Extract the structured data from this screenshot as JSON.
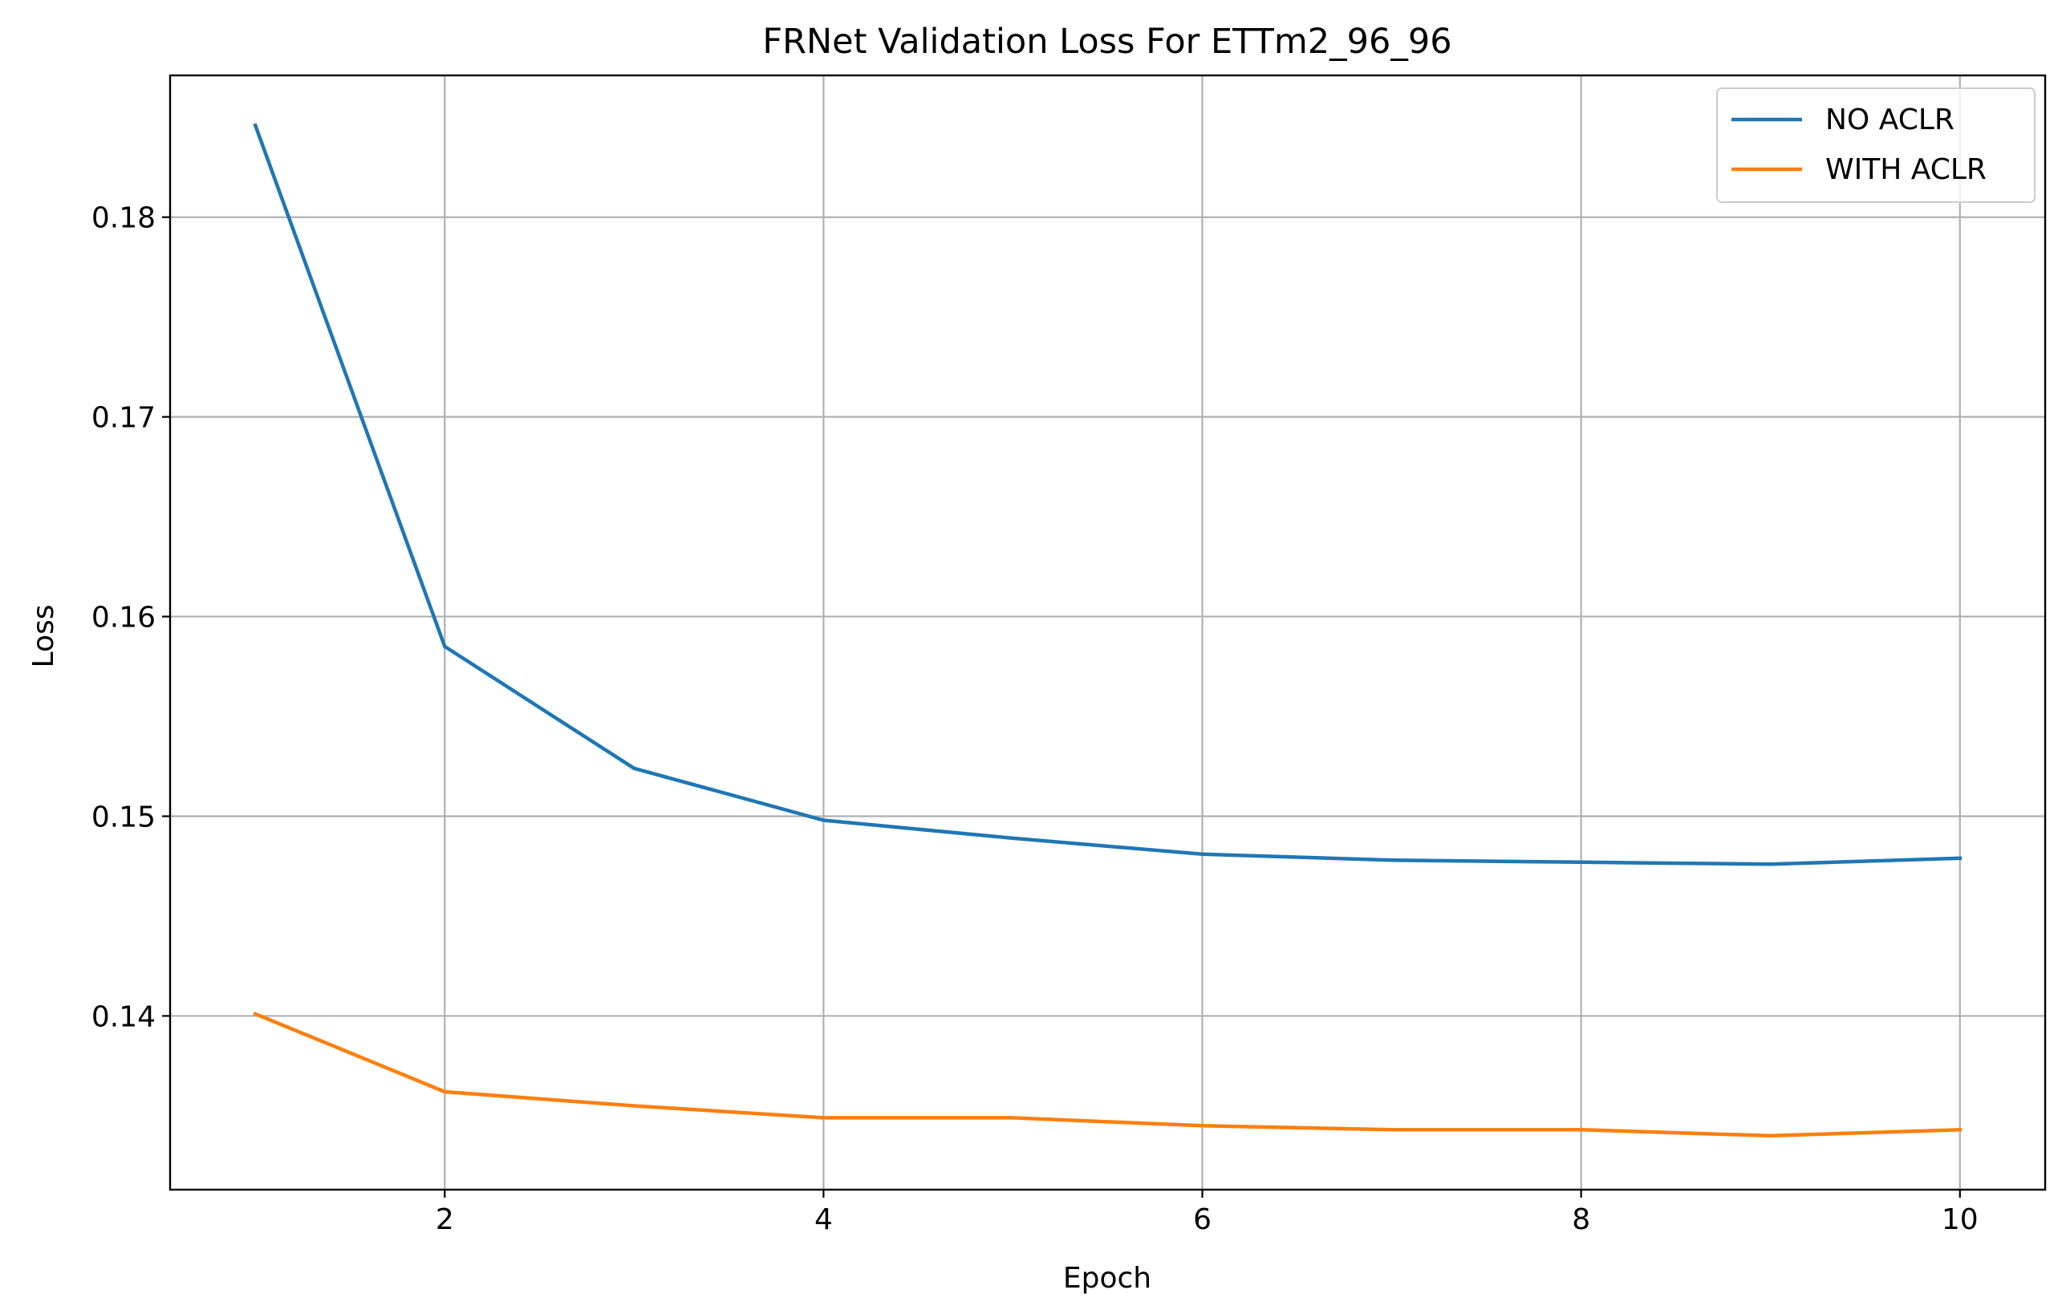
{
  "chart_data": {
    "type": "line",
    "title": "FRNet Validation Loss For ETTm2_96_96",
    "xlabel": "Epoch",
    "ylabel": "Loss",
    "x": [
      1,
      2,
      3,
      4,
      5,
      6,
      7,
      8,
      9,
      10
    ],
    "xlim": [
      0.55,
      10.45
    ],
    "ylim": [
      0.1313,
      0.1871
    ],
    "xticks": [
      2,
      4,
      6,
      8,
      10
    ],
    "yticks": [
      0.14,
      0.15,
      0.16,
      0.17,
      0.18
    ],
    "xtick_labels": [
      "2",
      "4",
      "6",
      "8",
      "10"
    ],
    "ytick_labels": [
      "0.14",
      "0.15",
      "0.16",
      "0.17",
      "0.18"
    ],
    "grid": true,
    "legend_position": "top-right",
    "series": [
      {
        "name": "NO ACLR",
        "color": "#1f77b4",
        "values": [
          0.1846,
          0.1585,
          0.1524,
          0.1498,
          0.1489,
          0.1481,
          0.1478,
          0.1477,
          0.1476,
          0.1479
        ]
      },
      {
        "name": "WITH ACLR",
        "color": "#ff7f0e",
        "values": [
          0.1401,
          0.1362,
          0.1355,
          0.1349,
          0.1349,
          0.1345,
          0.1343,
          0.1343,
          0.134,
          0.1343
        ]
      }
    ]
  }
}
